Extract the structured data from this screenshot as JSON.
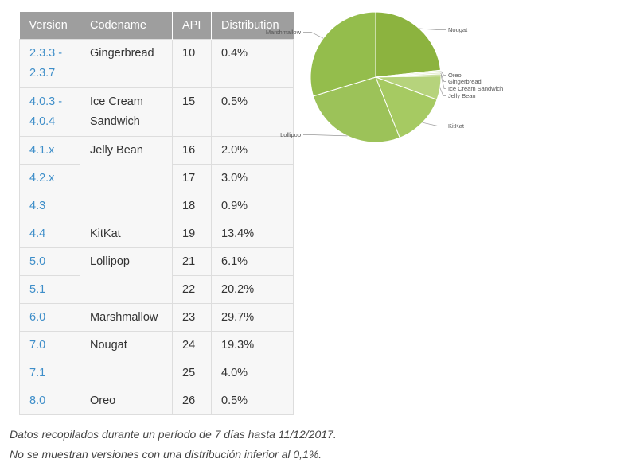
{
  "table": {
    "headers": [
      "Version",
      "Codename",
      "API",
      "Distribution"
    ],
    "rows": [
      {
        "version": "2.3.3 - 2.3.7",
        "codename": "Gingerbread",
        "api": "10",
        "distribution": "0.4%"
      },
      {
        "version": "4.0.3 - 4.0.4",
        "codename": "Ice Cream Sandwich",
        "api": "15",
        "distribution": "0.5%"
      },
      {
        "version": "4.1.x",
        "codename": "Jelly Bean",
        "api": "16",
        "distribution": "2.0%"
      },
      {
        "version": "4.2.x",
        "codename": "",
        "api": "17",
        "distribution": "3.0%"
      },
      {
        "version": "4.3",
        "codename": "",
        "api": "18",
        "distribution": "0.9%"
      },
      {
        "version": "4.4",
        "codename": "KitKat",
        "api": "19",
        "distribution": "13.4%"
      },
      {
        "version": "5.0",
        "codename": "Lollipop",
        "api": "21",
        "distribution": "6.1%"
      },
      {
        "version": "5.1",
        "codename": "",
        "api": "22",
        "distribution": "20.2%"
      },
      {
        "version": "6.0",
        "codename": "Marshmallow",
        "api": "23",
        "distribution": "29.7%"
      },
      {
        "version": "7.0",
        "codename": "Nougat",
        "api": "24",
        "distribution": "19.3%"
      },
      {
        "version": "7.1",
        "codename": "",
        "api": "25",
        "distribution": "4.0%"
      },
      {
        "version": "8.0",
        "codename": "Oreo",
        "api": "26",
        "distribution": "0.5%"
      }
    ]
  },
  "chart_data": {
    "type": "pie",
    "title": "",
    "categories": [
      "Nougat",
      "Oreo",
      "Gingerbread",
      "Ice Cream Sandwich",
      "Jelly Bean",
      "KitKat",
      "Lollipop",
      "Marshmallow"
    ],
    "values": [
      23.3,
      0.5,
      0.4,
      0.5,
      5.9,
      13.4,
      26.3,
      29.7
    ],
    "colors": [
      "#8cb33f",
      "#e9f1d6",
      "#dbe8bd",
      "#cde0a3",
      "#b6d37c",
      "#a6ca62",
      "#9cc259",
      "#94bd4c"
    ]
  },
  "captions": [
    "Datos recopilados durante un período de 7 días hasta 11/12/2017.",
    "No se muestran versiones con una distribución inferior al 0,1%."
  ]
}
